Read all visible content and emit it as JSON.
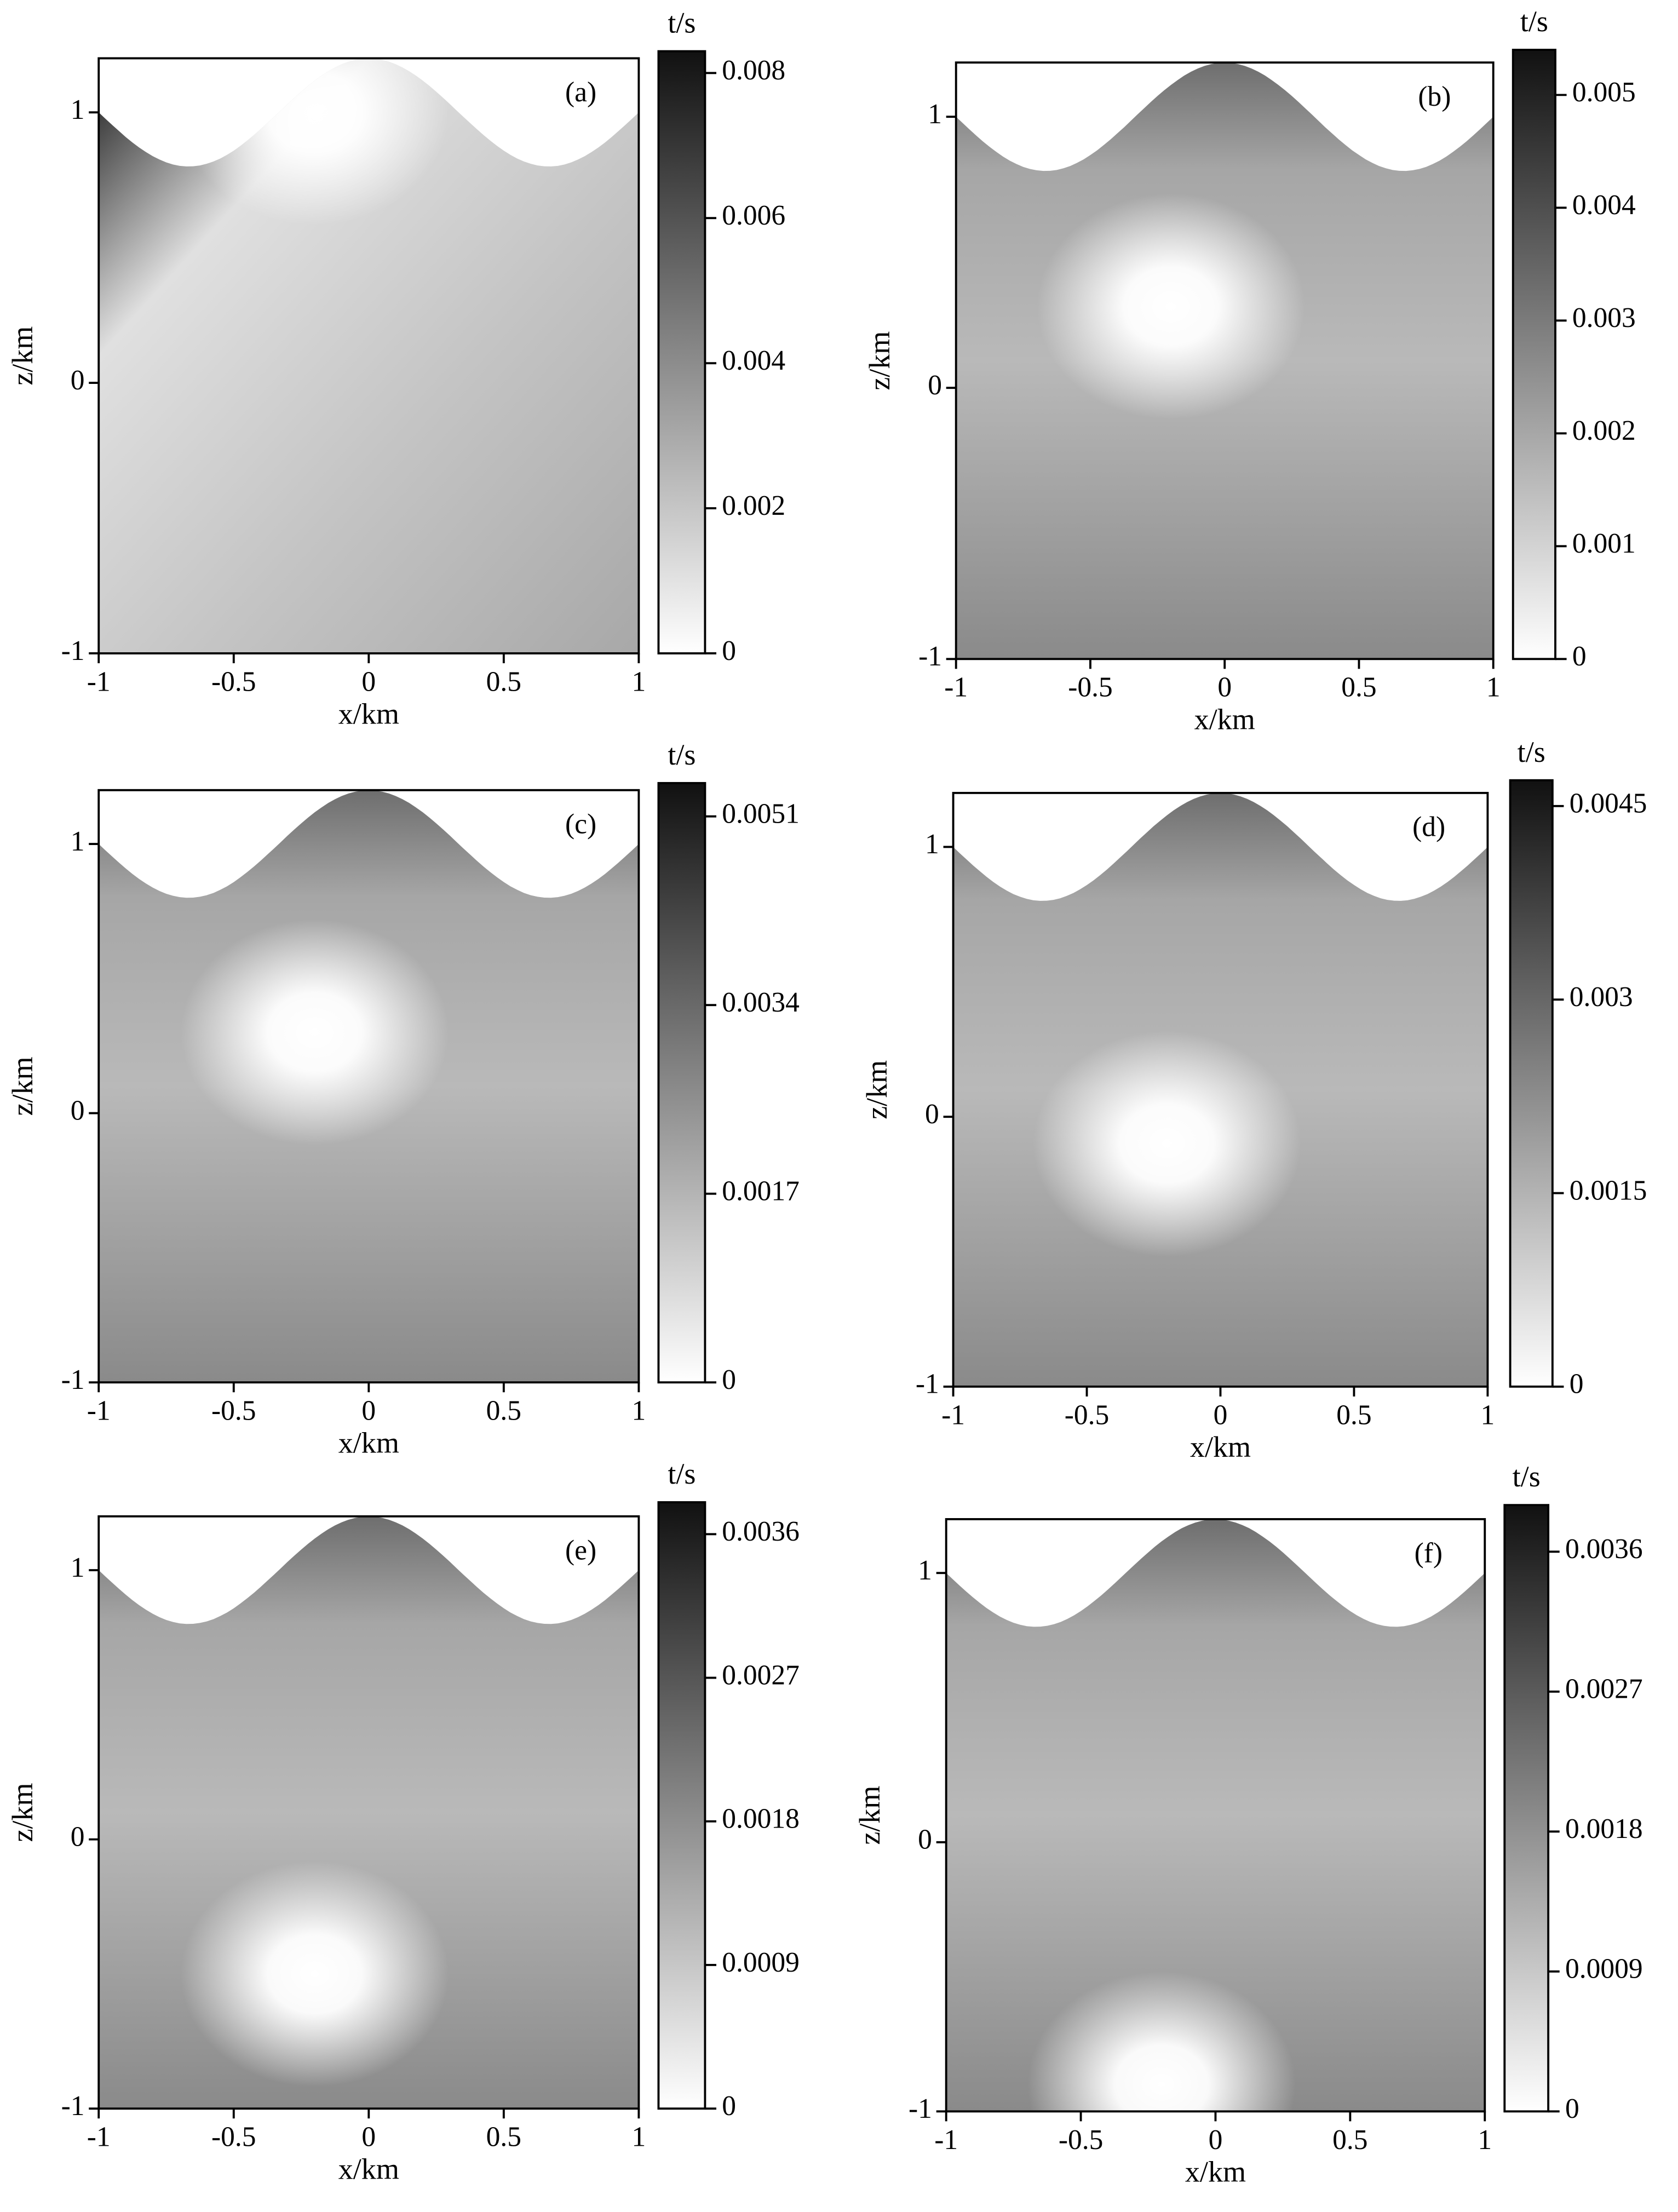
{
  "chart_data": [
    {
      "type": "heatmap",
      "label": "(a)",
      "xlabel": "x/km",
      "ylabel": "z/km",
      "colorbar_label": "t/s",
      "xlim": [
        -1,
        1
      ],
      "ylim": [
        -1,
        1.2
      ],
      "xticks": [
        -1,
        -0.5,
        0,
        0.5,
        1
      ],
      "yticks": [
        -1,
        0,
        1
      ],
      "clim": [
        0,
        0.0083
      ],
      "cticks": [
        0,
        0.002,
        0.004,
        0.006,
        0.008
      ],
      "source": [
        -0.2,
        1.0
      ]
    },
    {
      "type": "heatmap",
      "label": "(b)",
      "xlabel": "x/km",
      "ylabel": "z/km",
      "colorbar_label": "t/s",
      "xlim": [
        -1,
        1
      ],
      "ylim": [
        -1,
        1.2
      ],
      "xticks": [
        -1,
        -0.5,
        0,
        0.5,
        1
      ],
      "yticks": [
        -1,
        0,
        1
      ],
      "clim": [
        0,
        0.0054
      ],
      "cticks": [
        0,
        0.001,
        0.002,
        0.003,
        0.004,
        0.005
      ],
      "source": [
        -0.2,
        0.3
      ]
    },
    {
      "type": "heatmap",
      "label": "(c)",
      "xlabel": "x/km",
      "ylabel": "z/km",
      "colorbar_label": "t/s",
      "xlim": [
        -1,
        1
      ],
      "ylim": [
        -1,
        1.2
      ],
      "xticks": [
        -1,
        -0.5,
        0,
        0.5,
        1
      ],
      "yticks": [
        -1,
        0,
        1
      ],
      "clim": [
        0,
        0.0054
      ],
      "cticks": [
        0,
        0.0017,
        0.0034,
        0.0051
      ],
      "source": [
        -0.2,
        0.3
      ]
    },
    {
      "type": "heatmap",
      "label": "(d)",
      "xlabel": "x/km",
      "ylabel": "z/km",
      "colorbar_label": "t/s",
      "xlim": [
        -1,
        1
      ],
      "ylim": [
        -1,
        1.2
      ],
      "xticks": [
        -1,
        -0.5,
        0,
        0.5,
        1
      ],
      "yticks": [
        -1,
        0,
        1
      ],
      "clim": [
        0,
        0.0047
      ],
      "cticks": [
        0,
        0.0015,
        0.003,
        0.0045
      ],
      "source": [
        -0.2,
        -0.1
      ]
    },
    {
      "type": "heatmap",
      "label": "(e)",
      "xlabel": "x/km",
      "ylabel": "z/km",
      "colorbar_label": "t/s",
      "xlim": [
        -1,
        1
      ],
      "ylim": [
        -1,
        1.2
      ],
      "xticks": [
        -1,
        -0.5,
        0,
        0.5,
        1
      ],
      "yticks": [
        -1,
        0,
        1
      ],
      "clim": [
        0,
        0.0038
      ],
      "cticks": [
        0,
        0.0009,
        0.0018,
        0.0027,
        0.0036
      ],
      "source": [
        -0.2,
        -0.5
      ]
    },
    {
      "type": "heatmap",
      "label": "(f)",
      "xlabel": "x/km",
      "ylabel": "z/km",
      "colorbar_label": "t/s",
      "xlim": [
        -1,
        1
      ],
      "ylim": [
        -1,
        1.2
      ],
      "xticks": [
        -1,
        -0.5,
        0,
        0.5,
        1
      ],
      "yticks": [
        -1,
        0,
        1
      ],
      "clim": [
        0,
        0.0039
      ],
      "cticks": [
        0,
        0.0009,
        0.0018,
        0.0027,
        0.0036
      ],
      "source": [
        -0.2,
        -0.9
      ]
    }
  ]
}
